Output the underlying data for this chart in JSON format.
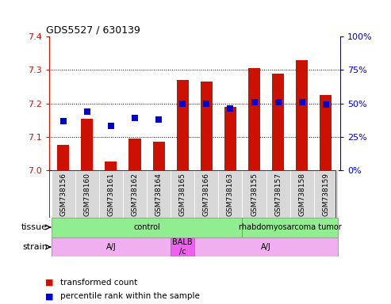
{
  "title": "GDS5527 / 630139",
  "samples": [
    "GSM738156",
    "GSM738160",
    "GSM738161",
    "GSM738162",
    "GSM738164",
    "GSM738165",
    "GSM738166",
    "GSM738163",
    "GSM738155",
    "GSM738157",
    "GSM738158",
    "GSM738159"
  ],
  "transformed_count": [
    7.075,
    7.155,
    7.025,
    7.095,
    7.085,
    7.27,
    7.265,
    7.19,
    7.305,
    7.29,
    7.33,
    7.225
  ],
  "percentile_rank": [
    37,
    44,
    33,
    39,
    38,
    50,
    50,
    46,
    51,
    51,
    51,
    49
  ],
  "ylim_left": [
    7.0,
    7.4
  ],
  "ylim_right": [
    0,
    100
  ],
  "yticks_left": [
    7.0,
    7.1,
    7.2,
    7.3,
    7.4
  ],
  "yticks_right": [
    0,
    25,
    50,
    75,
    100
  ],
  "bar_color": "#cc1100",
  "dot_color": "#0000cc",
  "bar_width": 0.5,
  "tissue_groups": [
    {
      "label": "control",
      "start": 0,
      "end": 8,
      "color": "#90ee90"
    },
    {
      "label": "rhabdomyosarcoma tumor",
      "start": 8,
      "end": 12,
      "color": "#90ee90"
    }
  ],
  "strain_groups": [
    {
      "label": "A/J",
      "start": 0,
      "end": 5,
      "color": "#f0b0f0"
    },
    {
      "label": "BALB\n/c",
      "start": 5,
      "end": 6,
      "color": "#ee60ee"
    },
    {
      "label": "A/J",
      "start": 6,
      "end": 12,
      "color": "#f0b0f0"
    }
  ],
  "tissue_row_label": "tissue",
  "strain_row_label": "strain",
  "legend_items": [
    {
      "label": "transformed count",
      "color": "#cc1100"
    },
    {
      "label": "percentile rank within the sample",
      "color": "#0000cc"
    }
  ],
  "grid_dotted_at": [
    7.1,
    7.2,
    7.3
  ],
  "axis_color_left": "#cc1100",
  "axis_color_right": "#0000cc",
  "dot_size": 28,
  "background_color": "#ffffff",
  "xticklabel_bg": "#d8d8d8"
}
